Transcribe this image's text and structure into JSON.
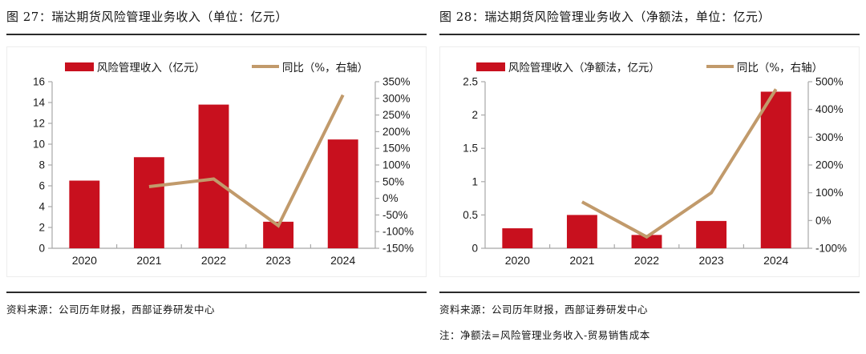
{
  "colors": {
    "bar_red": "#C8101E",
    "line_tan": "#C19A6B",
    "axis_gray": "#A8A8A8"
  },
  "panels": [
    {
      "title": "图 27：瑞达期货风险管理业务收入（单位：亿元）",
      "source": "资料来源：公司历年财报，西部证券研发中心",
      "note": ""
    },
    {
      "title": "图 28：瑞达期货风险管理业务收入（净额法，单位：亿元）",
      "source": "资料来源：公司历年财报，西部证券研发中心",
      "note": "注：净额法=风险管理业务收入-贸易销售成本"
    }
  ],
  "chart_data": [
    {
      "type": "bar",
      "title": "瑞达期货风险管理业务收入（单位：亿元）",
      "categories": [
        "2020",
        "2021",
        "2022",
        "2023",
        "2024"
      ],
      "series": [
        {
          "name": "风险管理收入（亿元）",
          "kind": "bar",
          "axis": "left",
          "color": "#C8101E",
          "values": [
            6.5,
            8.75,
            13.8,
            2.55,
            10.45
          ]
        },
        {
          "name": "同比（%，右轴）",
          "kind": "line",
          "axis": "right",
          "color": "#C19A6B",
          "values": [
            null,
            35,
            58,
            -82,
            310
          ]
        }
      ],
      "left_axis": {
        "min": 0,
        "max": 16,
        "ticks": [
          {
            "v": 16,
            "t": "16"
          },
          {
            "v": 14,
            "t": "14"
          },
          {
            "v": 12,
            "t": "12"
          },
          {
            "v": 10,
            "t": "10"
          },
          {
            "v": 8,
            "t": "8"
          },
          {
            "v": 6,
            "t": "6"
          },
          {
            "v": 4,
            "t": "4"
          },
          {
            "v": 2,
            "t": "2"
          },
          {
            "v": 0,
            "t": "0"
          }
        ]
      },
      "right_axis": {
        "min": -150,
        "max": 350,
        "ticks": [
          {
            "v": 350,
            "t": "350%"
          },
          {
            "v": 300,
            "t": "300%"
          },
          {
            "v": 250,
            "t": "250%"
          },
          {
            "v": 200,
            "t": "200%"
          },
          {
            "v": 150,
            "t": "150%"
          },
          {
            "v": 100,
            "t": "100%"
          },
          {
            "v": 50,
            "t": "50%"
          },
          {
            "v": 0,
            "t": "0%"
          },
          {
            "v": -50,
            "t": "-50%"
          },
          {
            "v": -100,
            "t": "-100%"
          },
          {
            "v": -150,
            "t": "-150%"
          }
        ]
      },
      "grid": false,
      "legend_position": "top"
    },
    {
      "type": "bar",
      "title": "瑞达期货风险管理业务收入（净额法，单位：亿元）",
      "categories": [
        "2020",
        "2021",
        "2022",
        "2023",
        "2024"
      ],
      "series": [
        {
          "name": "风险管理收入（净额法，亿元）",
          "kind": "bar",
          "axis": "left",
          "color": "#C8101E",
          "values": [
            0.3,
            0.5,
            0.2,
            0.41,
            2.35
          ]
        },
        {
          "name": "同比（%，右轴）",
          "kind": "line",
          "axis": "right",
          "color": "#C19A6B",
          "values": [
            null,
            67,
            -59,
            100,
            473
          ]
        }
      ],
      "left_axis": {
        "min": 0,
        "max": 2.5,
        "ticks": [
          {
            "v": 2.5,
            "t": "2.5"
          },
          {
            "v": 2,
            "t": "2"
          },
          {
            "v": 1.5,
            "t": "1.5"
          },
          {
            "v": 1,
            "t": "1"
          },
          {
            "v": 0.5,
            "t": "0.5"
          },
          {
            "v": 0,
            "t": "0"
          }
        ]
      },
      "right_axis": {
        "min": -100,
        "max": 500,
        "ticks": [
          {
            "v": 500,
            "t": "500%"
          },
          {
            "v": 400,
            "t": "400%"
          },
          {
            "v": 300,
            "t": "300%"
          },
          {
            "v": 200,
            "t": "200%"
          },
          {
            "v": 100,
            "t": "100%"
          },
          {
            "v": 0,
            "t": "0%"
          },
          {
            "v": -100,
            "t": "-100%"
          }
        ]
      },
      "grid": false,
      "legend_position": "top"
    }
  ]
}
